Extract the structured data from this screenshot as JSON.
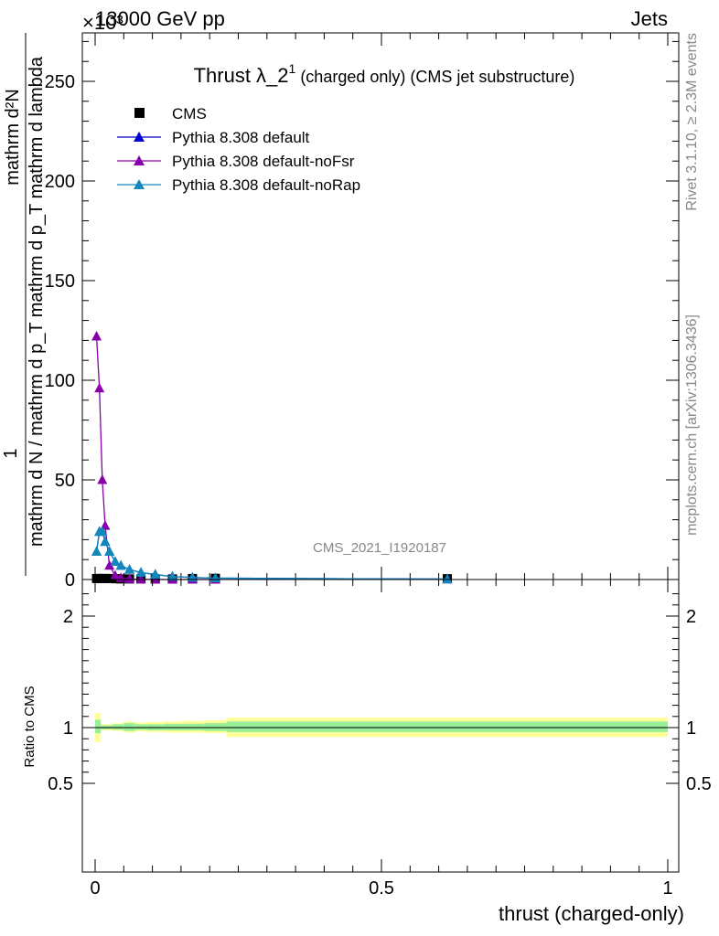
{
  "header": {
    "left": "13000 GeV pp",
    "right": "Jets",
    "exponent": "×10³"
  },
  "side_labels": {
    "rivet": "Rivet 3.1.10, ≥ 2.3M events",
    "mcplots": "mcplots.cern.ch [arXiv:1306.3436]"
  },
  "watermark": "CMS_2021_I1920187",
  "chart_data": [
    {
      "type": "line",
      "panel": "main",
      "title": "Thrust λ_2¹ (charged only) (CMS jet substructure)",
      "title_main": "Thrust λ_2",
      "title_sup": "1",
      "title_rest": "(charged only) (CMS jet substructure)",
      "ylabel_num": "mathrm d²N",
      "ylabel_den": "mathrm d N / mathrm d p_T mathrm d p_T mathrm d lambda",
      "ylabel_one": "1",
      "xlabel": "thrust (charged-only)",
      "xlim": [
        -0.02,
        1.02
      ],
      "ylim": [
        0,
        275
      ],
      "y_multiplier": 1000,
      "yticks": [
        0,
        50,
        100,
        150,
        200,
        250
      ],
      "xticks": [
        0,
        0.5,
        1
      ],
      "legend_position": "top-left",
      "legend": [
        {
          "name": "CMS",
          "color": "#000000",
          "marker": "square"
        },
        {
          "name": "Pythia 8.308 default",
          "color": "#0000cc",
          "marker": "triangle"
        },
        {
          "name": "Pythia 8.308 default-noFsr",
          "color": "#8800aa",
          "marker": "triangle"
        },
        {
          "name": "Pythia 8.308 default-noRap",
          "color": "#1188bb",
          "marker": "triangle"
        }
      ],
      "series": [
        {
          "name": "CMS",
          "color": "#000000",
          "x": [
            0.0025,
            0.0075,
            0.0125,
            0.0175,
            0.025,
            0.035,
            0.045,
            0.06,
            0.08,
            0.105,
            0.135,
            0.17,
            0.21,
            0.615
          ],
          "y": [
            0.5,
            0.5,
            0.5,
            0.5,
            0.5,
            0.4,
            0.3,
            0.3,
            0.3,
            0.3,
            0.3,
            0.5,
            0.6,
            0.4
          ]
        },
        {
          "name": "Pythia 8.308 default",
          "color": "#0000cc",
          "x": [
            0.0025,
            0.0075,
            0.0125,
            0.0175,
            0.025,
            0.035,
            0.045,
            0.06,
            0.08,
            0.105,
            0.135,
            0.17,
            0.21,
            0.615
          ],
          "y": [
            14,
            24,
            24,
            19,
            14,
            9,
            7,
            5,
            3.5,
            2.5,
            1.5,
            1,
            0.7,
            0.2
          ]
        },
        {
          "name": "Pythia 8.308 default-noFsr",
          "color": "#8800aa",
          "x": [
            0.0025,
            0.0075,
            0.0125,
            0.0175,
            0.025,
            0.035,
            0.045,
            0.06,
            0.08,
            0.105,
            0.135,
            0.17,
            0.21
          ],
          "y": [
            122,
            96,
            50,
            27,
            7,
            2,
            0.8,
            0.3,
            0.1,
            0,
            0,
            0,
            0
          ]
        },
        {
          "name": "Pythia 8.308 default-noRap",
          "color": "#1188bb",
          "x": [
            0.0025,
            0.0075,
            0.0125,
            0.0175,
            0.025,
            0.035,
            0.045,
            0.06,
            0.08,
            0.105,
            0.135,
            0.17,
            0.21,
            0.615
          ],
          "y": [
            14,
            24,
            24,
            19,
            14,
            9,
            7,
            5,
            3.5,
            2.5,
            1.5,
            1,
            0.7,
            0.2
          ]
        }
      ]
    },
    {
      "type": "area",
      "panel": "ratio",
      "ylabel": "Ratio to CMS",
      "ylim": [
        0.4,
        2.3
      ],
      "yticks": [
        0.5,
        1,
        2
      ],
      "reference_line": 1,
      "bins": [
        {
          "x0": 0.0,
          "x1": 0.01,
          "inner": [
            0.95,
            1.07
          ],
          "outer": [
            0.87,
            1.13
          ]
        },
        {
          "x0": 0.01,
          "x1": 0.03,
          "inner": [
            0.985,
            1.02
          ],
          "outer": [
            0.975,
            1.03
          ]
        },
        {
          "x0": 0.03,
          "x1": 0.05,
          "inner": [
            0.98,
            1.03
          ],
          "outer": [
            0.97,
            1.04
          ]
        },
        {
          "x0": 0.05,
          "x1": 0.07,
          "inner": [
            0.97,
            1.04
          ],
          "outer": [
            0.955,
            1.055
          ]
        },
        {
          "x0": 0.07,
          "x1": 0.09,
          "inner": [
            0.98,
            1.03
          ],
          "outer": [
            0.965,
            1.045
          ]
        },
        {
          "x0": 0.09,
          "x1": 0.12,
          "inner": [
            0.975,
            1.03
          ],
          "outer": [
            0.96,
            1.05
          ]
        },
        {
          "x0": 0.12,
          "x1": 0.15,
          "inner": [
            0.975,
            1.035
          ],
          "outer": [
            0.955,
            1.055
          ]
        },
        {
          "x0": 0.15,
          "x1": 0.19,
          "inner": [
            0.975,
            1.035
          ],
          "outer": [
            0.955,
            1.06
          ]
        },
        {
          "x0": 0.19,
          "x1": 0.23,
          "inner": [
            0.97,
            1.04
          ],
          "outer": [
            0.95,
            1.065
          ]
        },
        {
          "x0": 0.23,
          "x1": 1.0,
          "inner": [
            0.96,
            1.055
          ],
          "outer": [
            0.915,
            1.09
          ]
        }
      ]
    }
  ]
}
